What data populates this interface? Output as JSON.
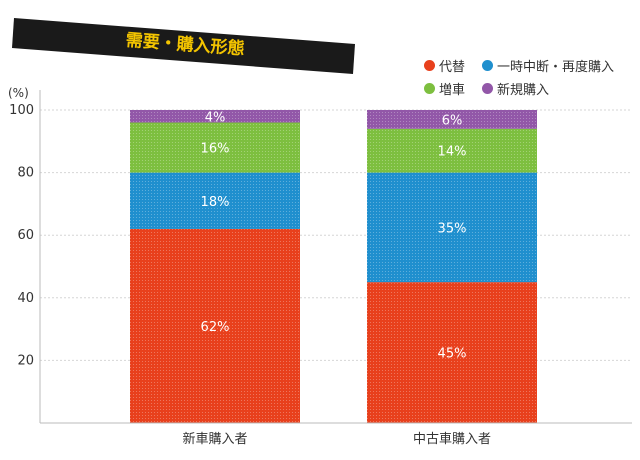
{
  "chart_data": {
    "type": "bar",
    "stacked": true,
    "title": "需要・購入形態",
    "ylabel": "(%)",
    "ylim": [
      0,
      100
    ],
    "yticks": [
      20,
      40,
      60,
      80,
      100
    ],
    "grid": true,
    "legend_position": "top-right",
    "categories": [
      "新車購入者",
      "中古車購入者"
    ],
    "series": [
      {
        "name": "代替",
        "color": "#e8401c",
        "values": [
          62,
          45
        ],
        "labels": [
          "62%",
          "45%"
        ]
      },
      {
        "name": "一時中断・再度購入",
        "color": "#1f8fce",
        "values": [
          18,
          35
        ],
        "labels": [
          "18%",
          "35%"
        ]
      },
      {
        "name": "増車",
        "color": "#7dbf3f",
        "values": [
          16,
          14
        ],
        "labels": [
          "16%",
          "14%"
        ]
      },
      {
        "name": "新規購入",
        "color": "#9257a8",
        "values": [
          4,
          6
        ],
        "labels": [
          "4%",
          "6%"
        ]
      }
    ]
  },
  "legend_rows": [
    [
      {
        "index": 0
      },
      {
        "index": 1
      }
    ],
    [
      {
        "index": 2
      },
      {
        "index": 3
      }
    ]
  ],
  "colors": {
    "banner": "#1a1a1a",
    "title_text": "#f3c400",
    "grid": "#d6d6d6",
    "axis_text": "#333333"
  }
}
